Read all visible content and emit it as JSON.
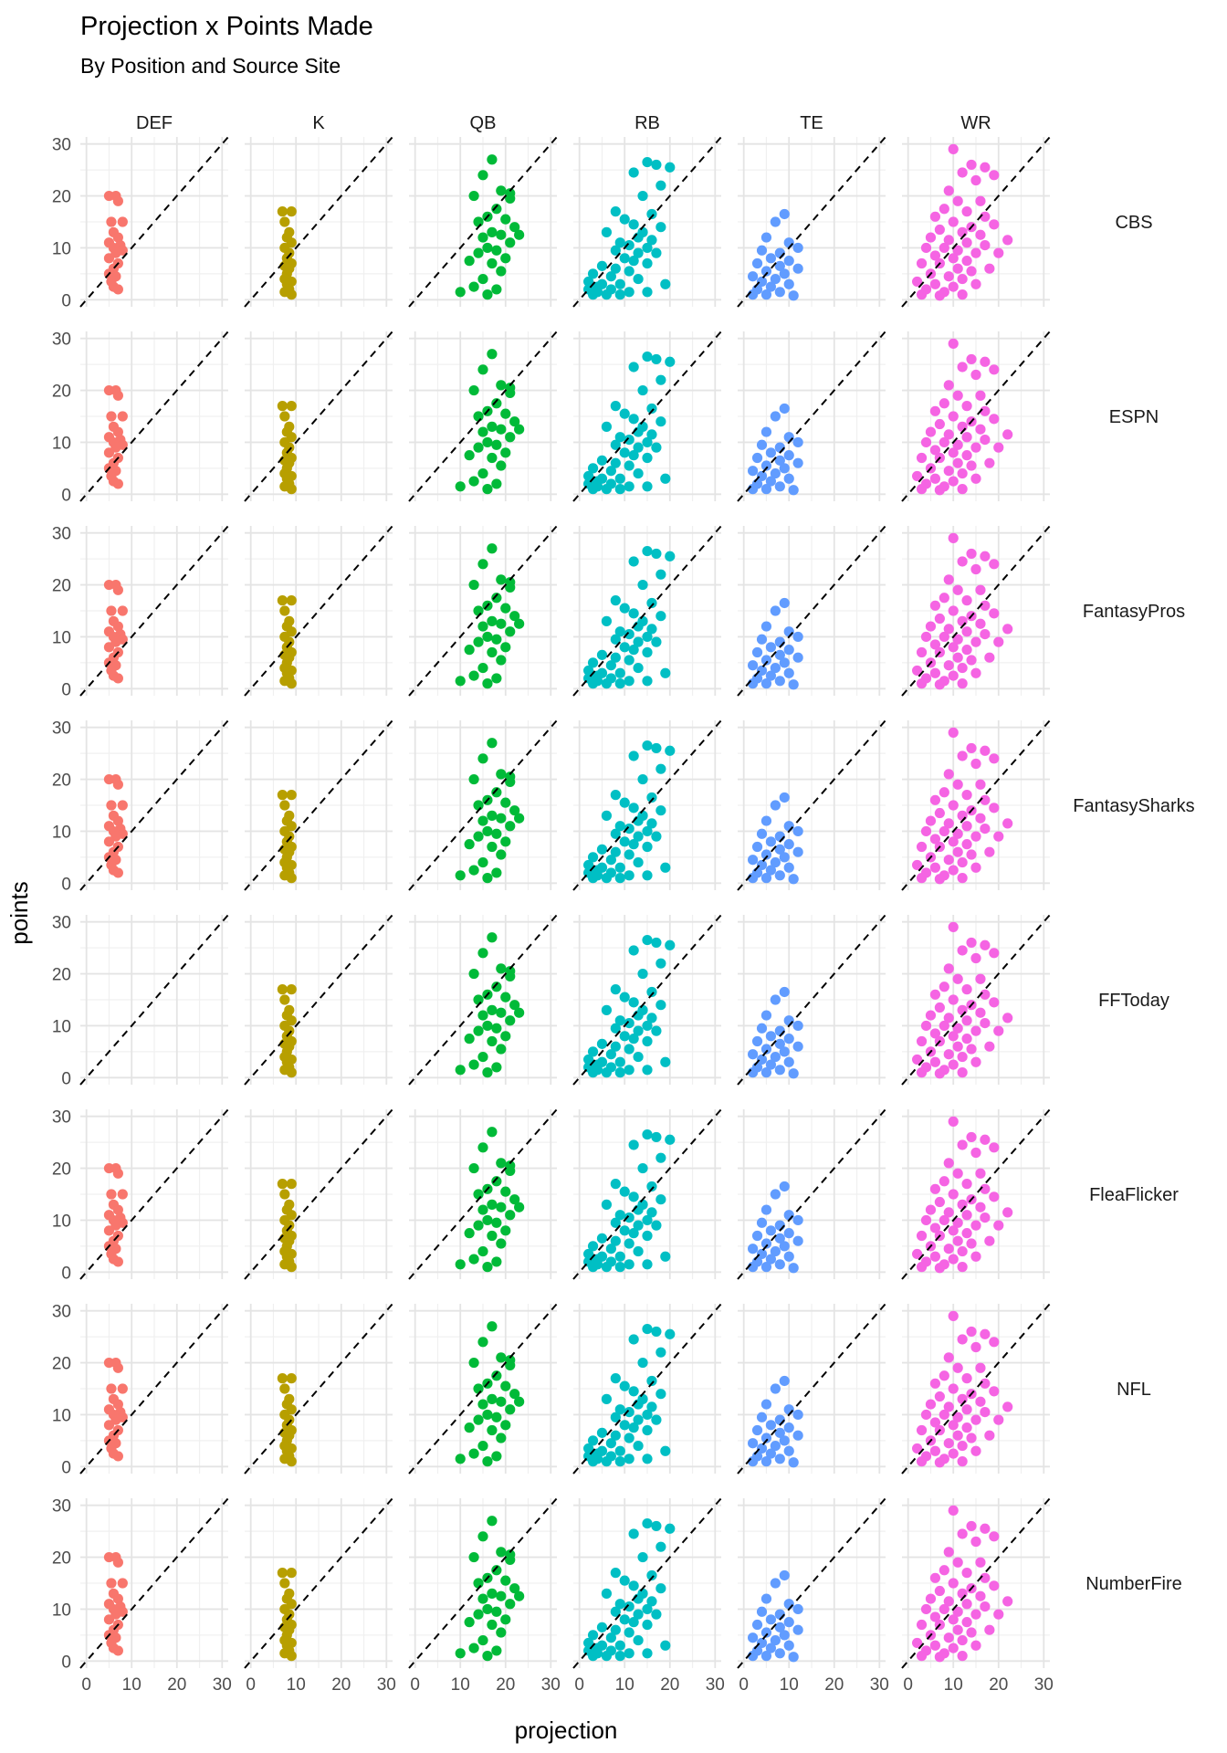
{
  "chart_data": {
    "type": "scatter",
    "title": "Projection x Points Made",
    "subtitle": "By Position and Source Site",
    "xlabel": "projection",
    "ylabel": "points",
    "xlim": [
      0,
      30
    ],
    "ylim": [
      0,
      30
    ],
    "xticks": [
      0,
      10,
      20,
      30
    ],
    "yticks": [
      0,
      10,
      20,
      30
    ],
    "grid": true,
    "reference_line": "identity (y = x), dashed black",
    "facet_columns": [
      "DEF",
      "K",
      "QB",
      "RB",
      "TE",
      "WR"
    ],
    "facet_rows": [
      "CBS",
      "ESPN",
      "FantasyPros",
      "FantasySharks",
      "FFToday",
      "FleaFlicker",
      "NFL",
      "NumberFire"
    ],
    "position_colors": {
      "DEF": "#F8766D",
      "K": "#B79F00",
      "QB": "#00BA38",
      "RB": "#00BFC4",
      "TE": "#619CFF",
      "WR": "#F564E3"
    },
    "position_points_profiles": {
      "DEF": [
        [
          5,
          20
        ],
        [
          6.5,
          20
        ],
        [
          7,
          19
        ],
        [
          5.5,
          15
        ],
        [
          8,
          15
        ],
        [
          6,
          13
        ],
        [
          7,
          12
        ],
        [
          5,
          11
        ],
        [
          7.5,
          10.5
        ],
        [
          6,
          10
        ],
        [
          8,
          9.5
        ],
        [
          6.5,
          9
        ],
        [
          5,
          8
        ],
        [
          7,
          7
        ],
        [
          6,
          6
        ],
        [
          5,
          5
        ],
        [
          6.5,
          4.5
        ],
        [
          5.5,
          3.5
        ],
        [
          6,
          2.5
        ],
        [
          7,
          2
        ]
      ],
      "K": [
        [
          7,
          17
        ],
        [
          9,
          17
        ],
        [
          7.5,
          15
        ],
        [
          8.5,
          13
        ],
        [
          8,
          12
        ],
        [
          9,
          11
        ],
        [
          7.5,
          10
        ],
        [
          8.5,
          9
        ],
        [
          8,
          8
        ],
        [
          9,
          7
        ],
        [
          7.5,
          6.5
        ],
        [
          8.5,
          6
        ],
        [
          8,
          5
        ],
        [
          7.5,
          4
        ],
        [
          9,
          3.5
        ],
        [
          8,
          3
        ],
        [
          8.5,
          2
        ],
        [
          7.5,
          1.5
        ],
        [
          9,
          1
        ]
      ],
      "QB": [
        [
          17,
          27
        ],
        [
          15,
          24
        ],
        [
          19,
          21
        ],
        [
          13,
          20
        ],
        [
          21,
          19.5
        ],
        [
          18,
          17.5
        ],
        [
          16,
          16
        ],
        [
          20,
          15.5
        ],
        [
          14,
          15
        ],
        [
          22,
          14
        ],
        [
          17,
          13
        ],
        [
          19,
          12.5
        ],
        [
          15,
          12
        ],
        [
          21,
          11
        ],
        [
          16,
          10
        ],
        [
          18,
          9.5
        ],
        [
          14,
          9
        ],
        [
          20,
          8
        ],
        [
          12,
          7.5
        ],
        [
          17,
          7
        ],
        [
          19,
          5.5
        ],
        [
          15,
          4
        ],
        [
          13,
          2.5
        ],
        [
          18,
          2
        ],
        [
          10,
          1.5
        ],
        [
          16,
          1
        ],
        [
          23,
          12.5
        ],
        [
          21,
          20.5
        ]
      ],
      "RB": [
        [
          15,
          26.5
        ],
        [
          17,
          26
        ],
        [
          20,
          25.5
        ],
        [
          12,
          24.5
        ],
        [
          18,
          22
        ],
        [
          14,
          20
        ],
        [
          8,
          17
        ],
        [
          16,
          16.5
        ],
        [
          10,
          15.5
        ],
        [
          12,
          14.5
        ],
        [
          18,
          14
        ],
        [
          14,
          13
        ],
        [
          6,
          13
        ],
        [
          13,
          12
        ],
        [
          16,
          11.5
        ],
        [
          9,
          11
        ],
        [
          11,
          10.5
        ],
        [
          15,
          10
        ],
        [
          8,
          9.5
        ],
        [
          13,
          9
        ],
        [
          17,
          9
        ],
        [
          10,
          8
        ],
        [
          12,
          7.5
        ],
        [
          15,
          7
        ],
        [
          5,
          6.5
        ],
        [
          8,
          6
        ],
        [
          11,
          5.5
        ],
        [
          3,
          5
        ],
        [
          7,
          4.5
        ],
        [
          13,
          4
        ],
        [
          2,
          3.5
        ],
        [
          5,
          3
        ],
        [
          9,
          3
        ],
        [
          4,
          2.5
        ],
        [
          7,
          2
        ],
        [
          2,
          2
        ],
        [
          11,
          1.5
        ],
        [
          3,
          1
        ],
        [
          6,
          1
        ],
        [
          9,
          1
        ],
        [
          15,
          1.5
        ],
        [
          19,
          3
        ],
        [
          4,
          1.5
        ]
      ],
      "TE": [
        [
          9,
          16.5
        ],
        [
          7,
          15
        ],
        [
          5,
          12
        ],
        [
          10,
          11
        ],
        [
          12,
          10
        ],
        [
          4,
          9.5
        ],
        [
          8,
          9
        ],
        [
          6,
          8
        ],
        [
          10,
          7.5
        ],
        [
          3,
          7
        ],
        [
          8,
          6.5
        ],
        [
          12,
          6
        ],
        [
          5,
          5.5
        ],
        [
          9,
          5
        ],
        [
          2,
          4.5
        ],
        [
          7,
          4
        ],
        [
          4,
          3.5
        ],
        [
          10,
          3
        ],
        [
          6,
          2.5
        ],
        [
          3,
          2
        ],
        [
          8,
          1.5
        ],
        [
          5,
          1
        ],
        [
          11,
          0.8
        ],
        [
          2,
          1
        ]
      ],
      "WR": [
        [
          10,
          29
        ],
        [
          14,
          26
        ],
        [
          17,
          25.5
        ],
        [
          12,
          24.5
        ],
        [
          15,
          23
        ],
        [
          19,
          24
        ],
        [
          9,
          21
        ],
        [
          11,
          19
        ],
        [
          16,
          19
        ],
        [
          8,
          17.5
        ],
        [
          13,
          17
        ],
        [
          6,
          16
        ],
        [
          17,
          16
        ],
        [
          10,
          15
        ],
        [
          14,
          14
        ],
        [
          19,
          14.5
        ],
        [
          7,
          13.5
        ],
        [
          12,
          13
        ],
        [
          16,
          12.5
        ],
        [
          5,
          12
        ],
        [
          9,
          11.5
        ],
        [
          13,
          11
        ],
        [
          17,
          10.5
        ],
        [
          4,
          10
        ],
        [
          8,
          10
        ],
        [
          11,
          9.5
        ],
        [
          15,
          9
        ],
        [
          20,
          9
        ],
        [
          6,
          8.5
        ],
        [
          10,
          8
        ],
        [
          13,
          7.5
        ],
        [
          3,
          7
        ],
        [
          7,
          7
        ],
        [
          11,
          6
        ],
        [
          14,
          5.5
        ],
        [
          5,
          5
        ],
        [
          9,
          4.5
        ],
        [
          12,
          4
        ],
        [
          2,
          3.5
        ],
        [
          6,
          3
        ],
        [
          10,
          2.5
        ],
        [
          4,
          2
        ],
        [
          8,
          1.5
        ],
        [
          12,
          1
        ],
        [
          3,
          1
        ],
        [
          7,
          0.8
        ],
        [
          15,
          3
        ],
        [
          18,
          6
        ],
        [
          22,
          11.5
        ]
      ]
    },
    "panels": [
      {
        "row": "CBS",
        "column": "DEF",
        "has_points": true
      },
      {
        "row": "CBS",
        "column": "K",
        "has_points": true
      },
      {
        "row": "CBS",
        "column": "QB",
        "has_points": true
      },
      {
        "row": "CBS",
        "column": "RB",
        "has_points": true
      },
      {
        "row": "CBS",
        "column": "TE",
        "has_points": true
      },
      {
        "row": "CBS",
        "column": "WR",
        "has_points": true
      },
      {
        "row": "ESPN",
        "column": "DEF",
        "has_points": true
      },
      {
        "row": "ESPN",
        "column": "K",
        "has_points": true
      },
      {
        "row": "ESPN",
        "column": "QB",
        "has_points": true
      },
      {
        "row": "ESPN",
        "column": "RB",
        "has_points": true
      },
      {
        "row": "ESPN",
        "column": "TE",
        "has_points": true
      },
      {
        "row": "ESPN",
        "column": "WR",
        "has_points": true
      },
      {
        "row": "FantasyPros",
        "column": "DEF",
        "has_points": true
      },
      {
        "row": "FantasyPros",
        "column": "K",
        "has_points": true
      },
      {
        "row": "FantasyPros",
        "column": "QB",
        "has_points": true
      },
      {
        "row": "FantasyPros",
        "column": "RB",
        "has_points": true
      },
      {
        "row": "FantasyPros",
        "column": "TE",
        "has_points": true
      },
      {
        "row": "FantasyPros",
        "column": "WR",
        "has_points": true
      },
      {
        "row": "FantasySharks",
        "column": "DEF",
        "has_points": true
      },
      {
        "row": "FantasySharks",
        "column": "K",
        "has_points": true
      },
      {
        "row": "FantasySharks",
        "column": "QB",
        "has_points": true
      },
      {
        "row": "FantasySharks",
        "column": "RB",
        "has_points": true
      },
      {
        "row": "FantasySharks",
        "column": "TE",
        "has_points": true
      },
      {
        "row": "FantasySharks",
        "column": "WR",
        "has_points": true
      },
      {
        "row": "FFToday",
        "column": "DEF",
        "has_points": false
      },
      {
        "row": "FFToday",
        "column": "K",
        "has_points": true
      },
      {
        "row": "FFToday",
        "column": "QB",
        "has_points": true
      },
      {
        "row": "FFToday",
        "column": "RB",
        "has_points": true
      },
      {
        "row": "FFToday",
        "column": "TE",
        "has_points": true
      },
      {
        "row": "FFToday",
        "column": "WR",
        "has_points": true
      },
      {
        "row": "FleaFlicker",
        "column": "DEF",
        "has_points": true
      },
      {
        "row": "FleaFlicker",
        "column": "K",
        "has_points": true
      },
      {
        "row": "FleaFlicker",
        "column": "QB",
        "has_points": true
      },
      {
        "row": "FleaFlicker",
        "column": "RB",
        "has_points": true
      },
      {
        "row": "FleaFlicker",
        "column": "TE",
        "has_points": true
      },
      {
        "row": "FleaFlicker",
        "column": "WR",
        "has_points": true
      },
      {
        "row": "NFL",
        "column": "DEF",
        "has_points": true
      },
      {
        "row": "NFL",
        "column": "K",
        "has_points": true
      },
      {
        "row": "NFL",
        "column": "QB",
        "has_points": true
      },
      {
        "row": "NFL",
        "column": "RB",
        "has_points": true
      },
      {
        "row": "NFL",
        "column": "TE",
        "has_points": true
      },
      {
        "row": "NFL",
        "column": "WR",
        "has_points": true
      },
      {
        "row": "NumberFire",
        "column": "DEF",
        "has_points": true
      },
      {
        "row": "NumberFire",
        "column": "K",
        "has_points": true
      },
      {
        "row": "NumberFire",
        "column": "QB",
        "has_points": true
      },
      {
        "row": "NumberFire",
        "column": "RB",
        "has_points": true
      },
      {
        "row": "NumberFire",
        "column": "TE",
        "has_points": true
      },
      {
        "row": "NumberFire",
        "column": "WR",
        "has_points": true
      }
    ]
  }
}
